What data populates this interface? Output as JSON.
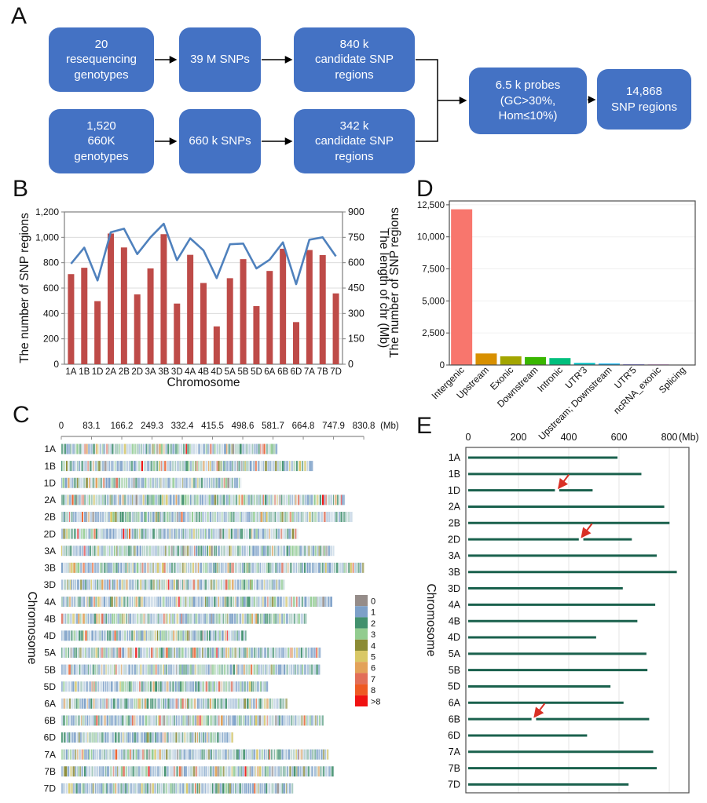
{
  "panel_labels": {
    "a": "A",
    "b": "B",
    "c": "C",
    "d": "D",
    "e": "E"
  },
  "panel_a": {
    "box_fill": "#4472c4",
    "boxes": [
      {
        "name": "resequencing-genotypes",
        "text": "20\nresequencing\ngenotypes"
      },
      {
        "name": "39m-snps",
        "text": "39 M SNPs"
      },
      {
        "name": "840k-candidate-regions",
        "text": "840 k\ncandidate SNP\nregions"
      },
      {
        "name": "1520-660k-genotypes",
        "text": "1,520\n660K\ngenotypes"
      },
      {
        "name": "660k-snps",
        "text": "660 k SNPs"
      },
      {
        "name": "342k-candidate-regions",
        "text": "342 k\ncandidate SNP\nregions"
      },
      {
        "name": "probes-filter",
        "text": "6.5 k probes\n(GC>30%,\nHom≤10%)"
      },
      {
        "name": "final-snp-regions",
        "text": "14,868\nSNP regions"
      }
    ]
  },
  "chart_data": [
    {
      "id": "B",
      "type": "bar",
      "xlabel": "Chromosome",
      "ylabel_left": "The number of SNP regions",
      "ylabel_right": "The length of chr (Mb)",
      "categories": [
        "1A",
        "1B",
        "1D",
        "2A",
        "2B",
        "2D",
        "3A",
        "3B",
        "3D",
        "4A",
        "4B",
        "4D",
        "5A",
        "5B",
        "5D",
        "6A",
        "6B",
        "6D",
        "7A",
        "7B",
        "7D"
      ],
      "series": [
        {
          "name": "The number of SNP regions",
          "type": "bar",
          "axis": "left",
          "color": "#be4b48",
          "values": [
            710,
            760,
            497,
            1030,
            920,
            550,
            755,
            1025,
            478,
            862,
            640,
            298,
            678,
            828,
            458,
            735,
            910,
            332,
            900,
            860,
            558
          ]
        },
        {
          "name": "The length of chr (Mb)",
          "type": "line",
          "axis": "right",
          "color": "#4f81bd",
          "values": [
            594,
            689,
            495,
            780,
            801,
            651,
            750,
            830,
            615,
            744,
            673,
            509,
            709,
            713,
            566,
            618,
            720,
            473,
            736,
            750,
            638
          ]
        }
      ],
      "ylim_left": [
        0,
        1200
      ],
      "ytick_labels_left": [
        "0",
        "200",
        "400",
        "600",
        "800",
        "1,000",
        "1,200"
      ],
      "ylim_right": [
        0,
        900
      ],
      "ytick_labels_right": [
        "0",
        "150",
        "300",
        "450",
        "600",
        "750",
        "900"
      ],
      "grid": "horizontal"
    },
    {
      "id": "C",
      "type": "heatmap",
      "ylabel": "Chromosome",
      "x_unit": "(Mb)",
      "xlim": [
        0,
        830.8
      ],
      "xtick_labels": [
        "0",
        "83.1",
        "166.2",
        "249.3",
        "332.4",
        "415.5",
        "498.6",
        "581.7",
        "664.8",
        "747.9",
        "830.8"
      ],
      "rows": [
        {
          "name": "1A",
          "length_mb": 594
        },
        {
          "name": "1B",
          "length_mb": 689
        },
        {
          "name": "1D",
          "length_mb": 495
        },
        {
          "name": "2A",
          "length_mb": 780
        },
        {
          "name": "2B",
          "length_mb": 801
        },
        {
          "name": "2D",
          "length_mb": 651
        },
        {
          "name": "3A",
          "length_mb": 750
        },
        {
          "name": "3B",
          "length_mb": 830
        },
        {
          "name": "3D",
          "length_mb": 615
        },
        {
          "name": "4A",
          "length_mb": 744
        },
        {
          "name": "4B",
          "length_mb": 673
        },
        {
          "name": "4D",
          "length_mb": 509
        },
        {
          "name": "5A",
          "length_mb": 709
        },
        {
          "name": "5B",
          "length_mb": 713
        },
        {
          "name": "5D",
          "length_mb": 566
        },
        {
          "name": "6A",
          "length_mb": 618
        },
        {
          "name": "6B",
          "length_mb": 720
        },
        {
          "name": "6D",
          "length_mb": 473
        },
        {
          "name": "7A",
          "length_mb": 736
        },
        {
          "name": "7B",
          "length_mb": 750
        },
        {
          "name": "7D",
          "length_mb": 638
        }
      ],
      "legend": {
        "labels": [
          "0",
          "1",
          "2",
          "3",
          "4",
          "5",
          "6",
          "7",
          "8",
          ">8"
        ],
        "colors": [
          "#958c89",
          "#7da0c8",
          "#42916d",
          "#92cc8f",
          "#8b8b35",
          "#d9c866",
          "#e3a259",
          "#e26e58",
          "#ee5a24",
          "#f01212"
        ]
      }
    },
    {
      "id": "D",
      "type": "bar",
      "ylabel": "The number of SNP regions",
      "categories": [
        "Intergenic",
        "Upstream",
        "Exonic",
        "Downstream",
        "Intronic",
        "UTR'3",
        "Upstream; Downstream",
        "UTR'5",
        "ncRNA_exonic",
        "Splicing"
      ],
      "values": [
        12150,
        900,
        680,
        620,
        540,
        160,
        110,
        70,
        45,
        15
      ],
      "colors": [
        "#F8766D",
        "#D89000",
        "#A3A500",
        "#39B600",
        "#00BF7D",
        "#00BFC4",
        "#00B0F6",
        "#9590FF",
        "#E76BF3",
        "#FF62BC"
      ],
      "ylim": [
        0,
        12800
      ],
      "ytick_labels": [
        "0",
        "2,500",
        "5,000",
        "7,500",
        "10,000",
        "12,500"
      ],
      "grid": "horizontal"
    },
    {
      "id": "E",
      "type": "segments",
      "ylabel": "Chromosome",
      "x_unit": "(Mb)",
      "xlim": [
        0,
        890
      ],
      "xtick_labels": [
        "0",
        "200",
        "400",
        "600",
        "800"
      ],
      "line_color": "#1a614d",
      "arrow_color": "#d93025",
      "rows": [
        {
          "name": "1A",
          "length_mb": 594,
          "gap_mb": null
        },
        {
          "name": "1B",
          "length_mb": 689,
          "gap_mb": null
        },
        {
          "name": "1D",
          "length_mb": 495,
          "gap_mb": [
            345,
            362
          ]
        },
        {
          "name": "2A",
          "length_mb": 780,
          "gap_mb": null
        },
        {
          "name": "2B",
          "length_mb": 801,
          "gap_mb": null
        },
        {
          "name": "2D",
          "length_mb": 651,
          "gap_mb": [
            440,
            458
          ]
        },
        {
          "name": "3A",
          "length_mb": 750,
          "gap_mb": null
        },
        {
          "name": "3B",
          "length_mb": 830,
          "gap_mb": null
        },
        {
          "name": "3D",
          "length_mb": 615,
          "gap_mb": null
        },
        {
          "name": "4A",
          "length_mb": 744,
          "gap_mb": null
        },
        {
          "name": "4B",
          "length_mb": 673,
          "gap_mb": null
        },
        {
          "name": "4D",
          "length_mb": 509,
          "gap_mb": null
        },
        {
          "name": "5A",
          "length_mb": 709,
          "gap_mb": null
        },
        {
          "name": "5B",
          "length_mb": 713,
          "gap_mb": null
        },
        {
          "name": "5D",
          "length_mb": 566,
          "gap_mb": null
        },
        {
          "name": "6A",
          "length_mb": 618,
          "gap_mb": null
        },
        {
          "name": "6B",
          "length_mb": 720,
          "gap_mb": [
            252,
            270
          ]
        },
        {
          "name": "6D",
          "length_mb": 473,
          "gap_mb": null
        },
        {
          "name": "7A",
          "length_mb": 736,
          "gap_mb": null
        },
        {
          "name": "7B",
          "length_mb": 750,
          "gap_mb": null
        },
        {
          "name": "7D",
          "length_mb": 638,
          "gap_mb": null
        }
      ],
      "arrows": [
        {
          "row": "1D",
          "tip_mb": 360
        },
        {
          "row": "2D",
          "tip_mb": 452
        },
        {
          "row": "6B",
          "tip_mb": 264
        }
      ]
    }
  ]
}
